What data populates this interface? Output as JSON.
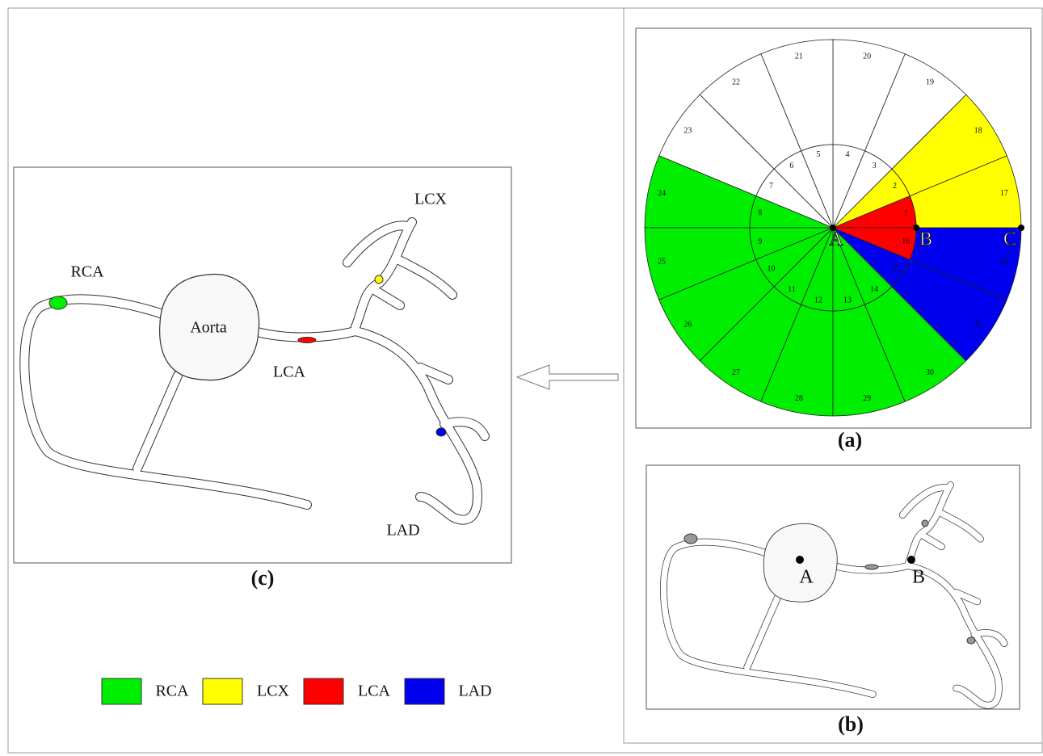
{
  "panel_a": {
    "caption": "(a)",
    "center_label": "A",
    "point_labels": [
      "B",
      "C"
    ],
    "inner_segments": [
      {
        "label": "1",
        "color": "#ff0000"
      },
      {
        "label": "2",
        "color": "#ffff00"
      },
      {
        "label": "3",
        "color": "#ffffff"
      },
      {
        "label": "4",
        "color": "#ffffff"
      },
      {
        "label": "5",
        "color": "#ffffff"
      },
      {
        "label": "6",
        "color": "#ffffff"
      },
      {
        "label": "7",
        "color": "#ffffff"
      },
      {
        "label": "8",
        "color": "#00ee00"
      },
      {
        "label": "9",
        "color": "#00ee00"
      },
      {
        "label": "10",
        "color": "#00ee00"
      },
      {
        "label": "11",
        "color": "#00ee00"
      },
      {
        "label": "12",
        "color": "#00ee00"
      },
      {
        "label": "13",
        "color": "#00ee00"
      },
      {
        "label": "14",
        "color": "#00ee00"
      },
      {
        "label": "15",
        "color": "#0000ee"
      },
      {
        "label": "16",
        "color": "#ff0000"
      }
    ],
    "outer_segments": [
      {
        "label": "17",
        "color": "#ffff00"
      },
      {
        "label": "18",
        "color": "#ffff00"
      },
      {
        "label": "19",
        "color": "#ffffff"
      },
      {
        "label": "20",
        "color": "#ffffff"
      },
      {
        "label": "21",
        "color": "#ffffff"
      },
      {
        "label": "22",
        "color": "#ffffff"
      },
      {
        "label": "23",
        "color": "#ffffff"
      },
      {
        "label": "24",
        "color": "#00ee00"
      },
      {
        "label": "25",
        "color": "#00ee00"
      },
      {
        "label": "26",
        "color": "#00ee00"
      },
      {
        "label": "27",
        "color": "#00ee00"
      },
      {
        "label": "28",
        "color": "#00ee00"
      },
      {
        "label": "29",
        "color": "#00ee00"
      },
      {
        "label": "30",
        "color": "#00ee00"
      },
      {
        "label": "31",
        "color": "#0000ee"
      },
      {
        "label": "32",
        "color": "#0000ee"
      }
    ]
  },
  "panel_b": {
    "caption": "(b)",
    "point_labels": [
      "A",
      "B"
    ]
  },
  "panel_c": {
    "caption": "(c)",
    "aorta": "Aorta",
    "vessel_labels": [
      "RCA",
      "LCX",
      "LCA",
      "LAD"
    ]
  },
  "legend": [
    {
      "label": "RCA",
      "color": "#00ee00"
    },
    {
      "label": "LCX",
      "color": "#ffff00"
    },
    {
      "label": "LCA",
      "color": "#ff0000"
    },
    {
      "label": "LAD",
      "color": "#0000ee"
    }
  ]
}
